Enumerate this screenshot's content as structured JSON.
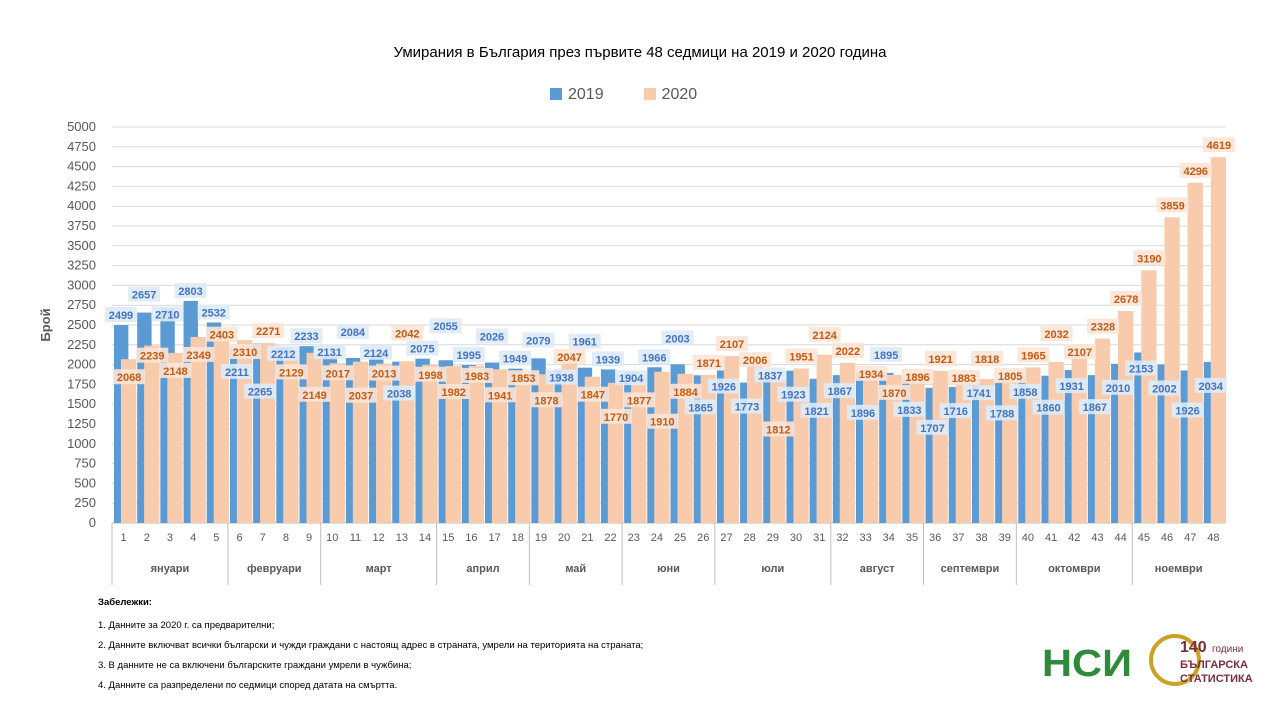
{
  "chart_data": {
    "type": "bar",
    "title": "Умирания в България през първите 48 седмици на 2019 и 2020 година",
    "ylabel": "Брой",
    "xlabel": "",
    "ylim": [
      0,
      5000
    ],
    "ytick_step": 250,
    "grid": true,
    "legend_position": "top-center",
    "categories": [
      "1",
      "2",
      "3",
      "4",
      "5",
      "6",
      "7",
      "8",
      "9",
      "10",
      "11",
      "12",
      "13",
      "14",
      "15",
      "16",
      "17",
      "18",
      "19",
      "20",
      "21",
      "22",
      "23",
      "24",
      "25",
      "26",
      "27",
      "28",
      "29",
      "30",
      "31",
      "32",
      "33",
      "34",
      "35",
      "36",
      "37",
      "38",
      "39",
      "40",
      "41",
      "42",
      "43",
      "44",
      "45",
      "46",
      "47",
      "48"
    ],
    "months": [
      {
        "label": "януари",
        "weeks": 5
      },
      {
        "label": "февруари",
        "weeks": 4
      },
      {
        "label": "март",
        "weeks": 5
      },
      {
        "label": "април",
        "weeks": 4
      },
      {
        "label": "май",
        "weeks": 4
      },
      {
        "label": "юни",
        "weeks": 4
      },
      {
        "label": "юли",
        "weeks": 5
      },
      {
        "label": "август",
        "weeks": 4
      },
      {
        "label": "септември",
        "weeks": 4
      },
      {
        "label": "октомври",
        "weeks": 5
      },
      {
        "label": "ноември",
        "weeks": 4
      }
    ],
    "series": [
      {
        "name": "2019",
        "color": "#5B9BD5",
        "label_color": "#4472C4",
        "label_bg": "#DDEBF7",
        "values": [
          2499,
          2657,
          2710,
          2803,
          2532,
          2211,
          2265,
          2212,
          2233,
          2131,
          2084,
          2124,
          2038,
          2075,
          2055,
          1995,
          2026,
          1949,
          2079,
          1938,
          1961,
          1939,
          1904,
          1966,
          2003,
          1865,
          1926,
          1773,
          1837,
          1923,
          1821,
          1867,
          1896,
          1895,
          1833,
          1707,
          1716,
          1741,
          1788,
          1858,
          1860,
          1931,
          1867,
          2010,
          2153,
          2002,
          1926,
          2034
        ]
      },
      {
        "name": "2020",
        "color": "#F8CBAD",
        "label_color": "#C55A11",
        "label_bg": "#FCE4D6",
        "values": [
          2068,
          2239,
          2148,
          2349,
          2403,
          2310,
          2271,
          2129,
          2149,
          2017,
          2037,
          2013,
          2042,
          1998,
          1982,
          1983,
          1941,
          1853,
          1878,
          2047,
          1847,
          1770,
          1877,
          1910,
          1884,
          1871,
          2107,
          2006,
          1812,
          1951,
          2124,
          2022,
          1934,
          1870,
          1896,
          1921,
          1883,
          1818,
          1805,
          1965,
          2032,
          2107,
          2328,
          2678,
          3190,
          3859,
          4296,
          4619
        ]
      }
    ]
  },
  "notes": {
    "heading": "Забележки:",
    "items": [
      "1. Данните за 2020 г. са предварителни;",
      "2. Данните включват всички български и чужди граждани с настоящ адрес в страната, умрели на територията на страната;",
      "3. В данните не са включени българските граждани умрели в чужбина;",
      "4. Данните са разпределени по седмици според  датата на смъртта."
    ]
  },
  "logos": {
    "nsi": "НСИ",
    "anniv_number": "140",
    "anniv_sub": "години",
    "anniv_text1": "БЪЛГАРСКА",
    "anniv_text2": "СТАТИСТИКА"
  }
}
